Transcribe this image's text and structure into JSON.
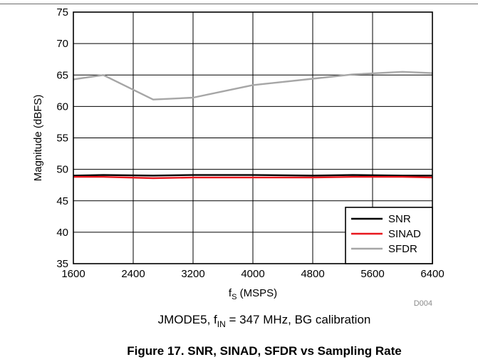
{
  "chart_data": {
    "type": "line",
    "title": "",
    "subtitle": {
      "prefix": "JMODE5, f",
      "sub": "IN",
      "suffix": " = 347 MHz, BG calibration"
    },
    "figure_caption": "Figure 17. SNR, SINAD, SFDR vs Sampling Rate",
    "xlabel": {
      "prefix": "f",
      "sub": "S",
      "suffix": " (MSPS)"
    },
    "ylabel": "Magnitude (dBFS)",
    "xlim": [
      1600,
      6400
    ],
    "ylim": [
      35,
      75
    ],
    "x_ticks": [
      1600,
      2400,
      3200,
      4000,
      4800,
      5600,
      6400
    ],
    "y_ticks": [
      35,
      40,
      45,
      50,
      55,
      60,
      65,
      70,
      75
    ],
    "grid": true,
    "legend_position": "bottom-right",
    "code": "D004",
    "series": [
      {
        "name": "SNR",
        "color": "#000000",
        "x": [
          1600,
          2000,
          2667,
          3200,
          4000,
          4800,
          5333,
          6000,
          6400
        ],
        "y": [
          49.0,
          49.1,
          49.0,
          49.1,
          49.1,
          49.0,
          49.1,
          49.0,
          49.0
        ]
      },
      {
        "name": "SINAD",
        "color": "#e8171e",
        "x": [
          1600,
          2000,
          2667,
          3200,
          4000,
          4800,
          5333,
          6000,
          6400
        ],
        "y": [
          48.8,
          48.8,
          48.6,
          48.7,
          48.7,
          48.7,
          48.8,
          48.8,
          48.7
        ]
      },
      {
        "name": "SFDR",
        "color": "#a6a6a6",
        "x": [
          1600,
          2000,
          2667,
          3200,
          4000,
          4800,
          5333,
          6000,
          6400
        ],
        "y": [
          64.3,
          65.0,
          61.1,
          61.4,
          63.4,
          64.4,
          65.1,
          65.5,
          65.3
        ]
      }
    ]
  }
}
